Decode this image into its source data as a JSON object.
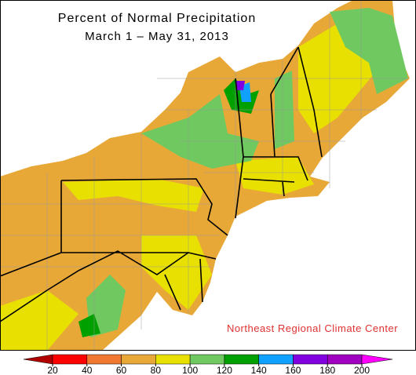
{
  "map": {
    "title": "Percent of Normal Precipitation",
    "subtitle": "March 1 – May 31, 2013",
    "credit": "Northeast Regional Climate Center"
  },
  "legend": {
    "ticks": [
      20,
      40,
      60,
      80,
      100,
      120,
      140,
      160,
      180,
      200
    ],
    "colors": [
      "#b00000",
      "#ff0000",
      "#f07830",
      "#e8a838",
      "#e8e000",
      "#70c860",
      "#00a000",
      "#10a0ff",
      "#8000e0",
      "#a000c0",
      "#ff00ff"
    ]
  }
}
